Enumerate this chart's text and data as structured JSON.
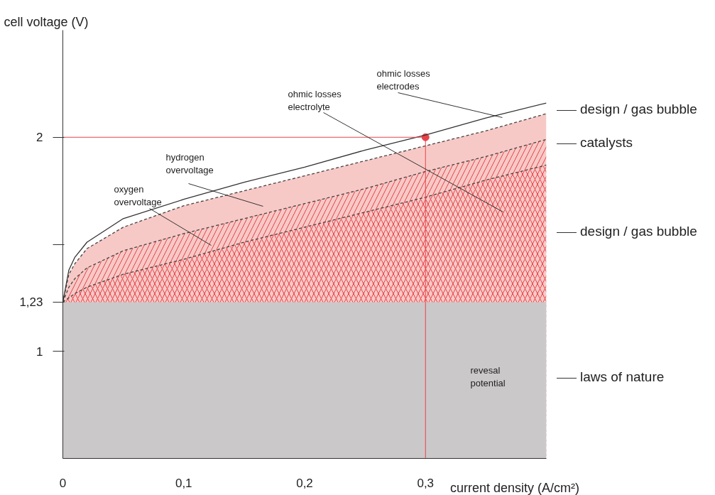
{
  "chart_data": {
    "type": "area",
    "xlabel": "current density (A/cm²)",
    "ylabel": "cell voltage (V)",
    "x": [
      0,
      0.005,
      0.01,
      0.02,
      0.05,
      0.1,
      0.15,
      0.2,
      0.25,
      0.3,
      0.35,
      0.4
    ],
    "series": [
      {
        "color": "#f7c9c6",
        "line_style": "dashed",
        "values": [
          1.23,
          1.36,
          1.41,
          1.48,
          1.58,
          1.68,
          1.75,
          1.82,
          1.89,
          1.96,
          2.03,
          2.11
        ]
      },
      {
        "color": "#e8434a",
        "line_style": "dashed",
        "values": [
          1.23,
          1.3,
          1.34,
          1.39,
          1.47,
          1.55,
          1.62,
          1.69,
          1.76,
          1.84,
          1.91,
          1.99
        ]
      },
      {
        "color": "#e8434a",
        "line_style": "dashed",
        "values": [
          1.23,
          1.25,
          1.27,
          1.3,
          1.36,
          1.43,
          1.51,
          1.58,
          1.65,
          1.72,
          1.8,
          1.87
        ]
      },
      {
        "color": "#cbc8c9",
        "line_style": "solid",
        "values": [
          1.23,
          1.23,
          1.23,
          1.23,
          1.23,
          1.23,
          1.23,
          1.23,
          1.23,
          1.23,
          1.23,
          1.23
        ]
      },
      {
        "type": "line",
        "color": "#333333",
        "line_style": "solid",
        "values": [
          1.23,
          1.38,
          1.44,
          1.51,
          1.62,
          1.71,
          1.79,
          1.86,
          1.94,
          2.01,
          2.09,
          2.16
        ]
      },
      {
        "type": "scatter",
        "color": "#e8434a",
        "marker": "circle",
        "x": [
          0.3
        ],
        "values": [
          2.0
        ]
      }
    ],
    "xlim": [
      0,
      0.4
    ],
    "ylim": [
      0.5,
      2.5
    ],
    "xticks": [
      0,
      {
        "value": 0.1,
        "label": "0,1"
      },
      {
        "value": 0.2,
        "label": "0,2"
      },
      {
        "value": 0.3,
        "label": "0,3"
      }
    ],
    "yticks": [
      1,
      {
        "value": 1.23,
        "label": "1,23"
      },
      {
        "value": 1.5,
        "label": null
      },
      2
    ],
    "ref_lines": [
      {
        "axis": "y",
        "value": 2,
        "color": "#e8434a"
      },
      {
        "axis": "x",
        "value": 0.3,
        "color": "#e8434a"
      }
    ],
    "annotations": [
      "ohmic losses\nelectrodes",
      "ohmic losses\nelectrolyte",
      "hydrogen\novervoltage",
      "oxygen\novervoltage",
      "revesal\npotential",
      "design / gas bubble",
      "catalysts",
      "design / gas bubble",
      "laws of nature"
    ],
    "grid": false
  }
}
